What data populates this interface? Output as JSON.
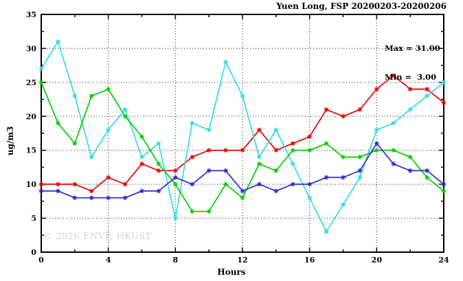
{
  "chart_data": {
    "type": "line",
    "title": "Yuen Long, FSP 20200203-20200206",
    "annotations": [
      "Max = 31.00",
      "Min =  3.00"
    ],
    "xlabel": "Hours",
    "ylabel": "ug/m3",
    "watermark": "© 2026 ENVF, HKUST",
    "xlim": [
      0,
      24
    ],
    "ylim": [
      0,
      35
    ],
    "x_major_ticks": [
      0,
      4,
      8,
      12,
      16,
      20,
      24
    ],
    "y_major_ticks": [
      0,
      5,
      10,
      15,
      20,
      25,
      30,
      35
    ],
    "x_minor_step": 2,
    "y_minor_step": 2.5,
    "grid": "dotted",
    "legend_position": "top-right-inside",
    "x": [
      0,
      1,
      2,
      3,
      4,
      5,
      6,
      7,
      8,
      9,
      10,
      11,
      12,
      13,
      14,
      15,
      16,
      17,
      18,
      19,
      20,
      21,
      22,
      23,
      24
    ],
    "series": [
      {
        "name": "red",
        "color": "#e60000",
        "values": [
          10,
          10,
          10,
          9,
          11,
          10,
          13,
          12,
          12,
          14,
          15,
          15,
          15,
          18,
          15,
          16,
          17,
          21,
          20,
          21,
          24,
          26,
          24,
          24,
          22
        ]
      },
      {
        "name": "cyan",
        "color": "#2edce8",
        "values": [
          27,
          31,
          23,
          14,
          18,
          21,
          14,
          16,
          5,
          19,
          18,
          28,
          23,
          14,
          18,
          13,
          8,
          3,
          7,
          11,
          18,
          19,
          21,
          23,
          25
        ]
      },
      {
        "name": "green",
        "color": "#00cc00",
        "values": [
          25,
          19,
          16,
          23,
          24,
          20,
          17,
          13,
          10,
          6,
          6,
          10,
          8,
          13,
          12,
          15,
          15,
          16,
          14,
          14,
          15,
          15,
          14,
          11,
          9
        ]
      },
      {
        "name": "blue",
        "color": "#2a2ad2",
        "values": [
          9,
          9,
          8,
          8,
          8,
          8,
          9,
          9,
          11,
          10,
          12,
          12,
          9,
          10,
          9,
          10,
          10,
          11,
          11,
          12,
          16,
          13,
          12,
          12,
          10
        ]
      }
    ]
  }
}
